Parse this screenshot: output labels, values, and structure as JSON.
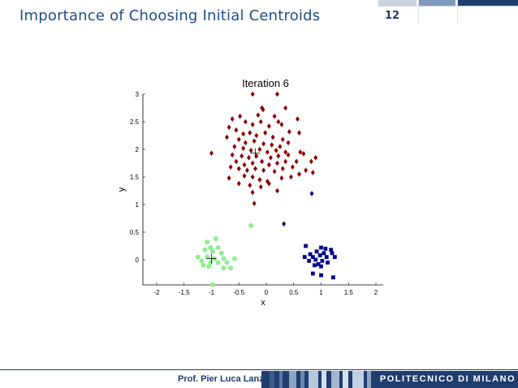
{
  "slide": {
    "title": "Importance of Choosing Initial Centroids",
    "number": "12"
  },
  "footer": {
    "author": "Prof. Pier Luca Lanzi",
    "brand": "POLITECNICO DI MILANO"
  },
  "colors": {
    "title": "#1f4e8c",
    "brand_bar": "#1f3d6e",
    "cluster_red": "#8b0000",
    "cluster_blue": "#00008b",
    "cluster_green": "#90ee90"
  },
  "chart_data": {
    "type": "scatter",
    "title": "Iteration 6",
    "xlabel": "x",
    "ylabel": "y",
    "xlim": [
      -2,
      2
    ],
    "ylim": [
      -0.5,
      3
    ],
    "xticks": [
      "-2",
      "-1.5",
      "-1",
      "-0.5",
      "0",
      "0.5",
      "1",
      "1.5",
      "2"
    ],
    "yticks": [
      "0",
      "0.5",
      "1",
      "1.5",
      "2",
      "2.5",
      "3"
    ],
    "grid": false,
    "legend": "none",
    "series": [
      {
        "marker": "diamond",
        "color": "#8b0000",
        "points": [
          [
            -0.25,
            3.0
          ],
          [
            0.2,
            3.0
          ],
          [
            -0.08,
            2.75
          ],
          [
            -0.06,
            2.72
          ],
          [
            0.35,
            2.75
          ],
          [
            -0.15,
            2.62
          ],
          [
            0.15,
            2.6
          ],
          [
            0.57,
            2.55
          ],
          [
            -0.62,
            2.55
          ],
          [
            -0.48,
            2.6
          ],
          [
            -0.38,
            2.5
          ],
          [
            -0.25,
            2.45
          ],
          [
            -0.1,
            2.5
          ],
          [
            0.05,
            2.42
          ],
          [
            0.22,
            2.5
          ],
          [
            0.28,
            2.45
          ],
          [
            0.42,
            2.32
          ],
          [
            0.6,
            2.3
          ],
          [
            -0.68,
            2.4
          ],
          [
            -0.55,
            2.35
          ],
          [
            -0.42,
            2.28
          ],
          [
            -0.3,
            2.3
          ],
          [
            -0.18,
            2.25
          ],
          [
            -0.02,
            2.3
          ],
          [
            0.12,
            2.22
          ],
          [
            0.3,
            2.18
          ],
          [
            -0.72,
            2.22
          ],
          [
            -0.5,
            2.18
          ],
          [
            -0.38,
            2.12
          ],
          [
            -0.22,
            2.15
          ],
          [
            -0.05,
            2.1
          ],
          [
            0.1,
            2.08
          ],
          [
            0.25,
            2.05
          ],
          [
            0.4,
            2.12
          ],
          [
            -0.58,
            2.05
          ],
          [
            -0.42,
            2.02
          ],
          [
            -0.28,
            1.98
          ],
          [
            -0.12,
            2.0
          ],
          [
            0.02,
            1.95
          ],
          [
            0.18,
            1.98
          ],
          [
            0.35,
            1.95
          ],
          [
            -0.62,
            1.9
          ],
          [
            -0.45,
            1.88
          ],
          [
            -0.32,
            1.85
          ],
          [
            -0.18,
            1.88
          ],
          [
            0.08,
            1.85
          ],
          [
            0.22,
            1.88
          ],
          [
            0.4,
            1.9
          ],
          [
            0.62,
            1.95
          ],
          [
            0.68,
            1.92
          ],
          [
            0.9,
            1.85
          ],
          [
            -1.0,
            1.93
          ],
          [
            -0.55,
            1.78
          ],
          [
            -0.4,
            1.72
          ],
          [
            -0.25,
            1.75
          ],
          [
            -0.08,
            1.78
          ],
          [
            0.05,
            1.72
          ],
          [
            0.2,
            1.75
          ],
          [
            0.35,
            1.78
          ],
          [
            0.55,
            1.78
          ],
          [
            0.82,
            1.78
          ],
          [
            -0.65,
            1.68
          ],
          [
            -0.5,
            1.65
          ],
          [
            -0.35,
            1.62
          ],
          [
            -0.2,
            1.65
          ],
          [
            -0.05,
            1.62
          ],
          [
            0.15,
            1.6
          ],
          [
            0.3,
            1.65
          ],
          [
            0.48,
            1.68
          ],
          [
            0.72,
            1.62
          ],
          [
            0.85,
            1.58
          ],
          [
            -0.68,
            1.48
          ],
          [
            -0.4,
            1.52
          ],
          [
            -0.25,
            1.5
          ],
          [
            -0.12,
            1.45
          ],
          [
            0.02,
            1.42
          ],
          [
            0.28,
            1.48
          ],
          [
            0.45,
            1.5
          ],
          [
            0.6,
            1.55
          ],
          [
            -0.5,
            1.38
          ],
          [
            -0.3,
            1.35
          ],
          [
            -0.1,
            1.32
          ],
          [
            0.05,
            1.38
          ],
          [
            0.2,
            1.25
          ],
          [
            -0.25,
            1.22
          ],
          [
            -0.22,
            1.02
          ]
        ]
      },
      {
        "marker": "diamond",
        "color": "#00008b",
        "points": [
          [
            0.83,
            1.2
          ],
          [
            0.32,
            0.65
          ]
        ]
      },
      {
        "marker": "square",
        "color": "#00008b",
        "points": [
          [
            0.72,
            0.25
          ],
          [
            1.0,
            0.22
          ],
          [
            1.08,
            0.2
          ],
          [
            1.18,
            0.18
          ],
          [
            0.92,
            0.15
          ],
          [
            1.05,
            0.12
          ],
          [
            1.2,
            0.12
          ],
          [
            0.8,
            0.1
          ],
          [
            0.98,
            0.08
          ],
          [
            1.1,
            0.05
          ],
          [
            0.85,
            0.05
          ],
          [
            0.7,
            0.05
          ],
          [
            0.9,
            0.0
          ],
          [
            1.02,
            -0.02
          ],
          [
            0.78,
            -0.02
          ],
          [
            1.12,
            -0.05
          ],
          [
            0.95,
            -0.08
          ],
          [
            0.88,
            -0.1
          ],
          [
            1.0,
            -0.12
          ],
          [
            1.25,
            0.05
          ],
          [
            0.85,
            -0.25
          ],
          [
            1.0,
            -0.28
          ],
          [
            1.22,
            -0.32
          ]
        ]
      },
      {
        "marker": "circle",
        "color": "#90ee90",
        "points": [
          [
            -0.28,
            0.62
          ],
          [
            -0.92,
            0.38
          ],
          [
            -1.08,
            0.32
          ],
          [
            -1.02,
            0.22
          ],
          [
            -0.88,
            0.22
          ],
          [
            -1.12,
            0.18
          ],
          [
            -0.98,
            0.15
          ],
          [
            -0.82,
            0.12
          ],
          [
            -1.25,
            0.05
          ],
          [
            -1.08,
            0.05
          ],
          [
            -0.95,
            0.02
          ],
          [
            -0.78,
            0.02
          ],
          [
            -0.58,
            0.02
          ],
          [
            -1.18,
            -0.02
          ],
          [
            -1.02,
            -0.05
          ],
          [
            -0.88,
            -0.05
          ],
          [
            -0.72,
            -0.05
          ],
          [
            -1.15,
            -0.1
          ],
          [
            -1.05,
            -0.12
          ],
          [
            -0.78,
            -0.15
          ],
          [
            -0.65,
            -0.15
          ],
          [
            -0.98,
            -0.45
          ]
        ]
      }
    ],
    "centroids": [
      {
        "x": -0.2,
        "y": 1.93
      },
      {
        "x": -1.0,
        "y": 0.02
      }
    ]
  }
}
